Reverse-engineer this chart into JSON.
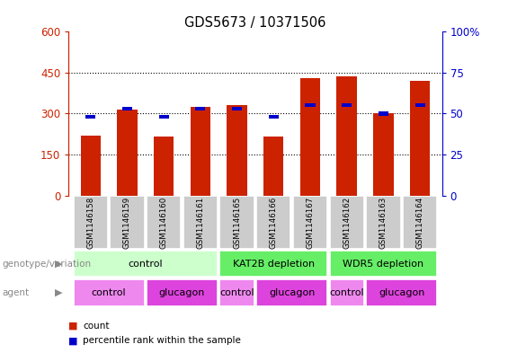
{
  "title": "GDS5673 / 10371506",
  "samples": [
    "GSM1146158",
    "GSM1146159",
    "GSM1146160",
    "GSM1146161",
    "GSM1146165",
    "GSM1146166",
    "GSM1146167",
    "GSM1146162",
    "GSM1146163",
    "GSM1146164"
  ],
  "counts": [
    220,
    315,
    215,
    325,
    330,
    215,
    430,
    435,
    300,
    420
  ],
  "percentiles": [
    48,
    53,
    48,
    53,
    53,
    48,
    55,
    55,
    50,
    55
  ],
  "left_ylim": [
    0,
    600
  ],
  "right_ylim": [
    0,
    100
  ],
  "left_yticks": [
    0,
    150,
    300,
    450,
    600
  ],
  "right_yticks": [
    0,
    25,
    50,
    75,
    100
  ],
  "right_yticklabels": [
    "0",
    "25",
    "50",
    "75",
    "100%"
  ],
  "bar_color": "#cc2200",
  "percentile_color": "#0000cc",
  "genotype_groups": [
    {
      "label": "control",
      "start": 0,
      "end": 4,
      "color": "#ccffcc"
    },
    {
      "label": "KAT2B depletion",
      "start": 4,
      "end": 7,
      "color": "#66ee66"
    },
    {
      "label": "WDR5 depletion",
      "start": 7,
      "end": 10,
      "color": "#66ee66"
    }
  ],
  "agent_groups": [
    {
      "label": "control",
      "start": 0,
      "end": 2,
      "color": "#ee88ee"
    },
    {
      "label": "glucagon",
      "start": 2,
      "end": 4,
      "color": "#dd44dd"
    },
    {
      "label": "control",
      "start": 4,
      "end": 5,
      "color": "#ee88ee"
    },
    {
      "label": "glucagon",
      "start": 5,
      "end": 7,
      "color": "#dd44dd"
    },
    {
      "label": "control",
      "start": 7,
      "end": 8,
      "color": "#ee88ee"
    },
    {
      "label": "glucagon",
      "start": 8,
      "end": 10,
      "color": "#dd44dd"
    }
  ],
  "legend_count_color": "#cc2200",
  "legend_percentile_color": "#0000cc",
  "axis_color_left": "#cc2200",
  "axis_color_right": "#0000cc",
  "bar_width": 0.55,
  "sample_bg": "#cccccc",
  "grid_dotted_ticks": [
    150,
    300,
    450
  ],
  "label_color": "#888888"
}
